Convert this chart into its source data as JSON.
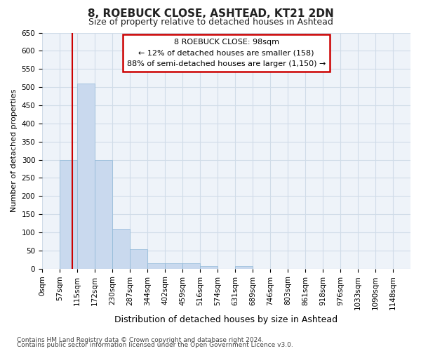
{
  "title1": "8, ROEBUCK CLOSE, ASHTEAD, KT21 2DN",
  "title2": "Size of property relative to detached houses in Ashtead",
  "xlabel": "Distribution of detached houses by size in Ashtead",
  "ylabel": "Number of detached properties",
  "bin_labels": [
    "0sqm",
    "57sqm",
    "115sqm",
    "172sqm",
    "230sqm",
    "287sqm",
    "344sqm",
    "402sqm",
    "459sqm",
    "516sqm",
    "574sqm",
    "631sqm",
    "689sqm",
    "746sqm",
    "803sqm",
    "861sqm",
    "918sqm",
    "976sqm",
    "1033sqm",
    "1090sqm",
    "1148sqm"
  ],
  "bar_heights": [
    0,
    300,
    510,
    300,
    110,
    53,
    15,
    15,
    15,
    8,
    0,
    8,
    0,
    0,
    0,
    0,
    0,
    0,
    0,
    0,
    0
  ],
  "bar_color": "#c9d9ee",
  "bar_edge_color": "#8fb8d8",
  "grid_color": "#d0dce8",
  "background_color": "#ffffff",
  "plot_bg_color": "#eef3f9",
  "red_line_x": 1.72,
  "annotation_title": "8 ROEBUCK CLOSE: 98sqm",
  "annotation_line1": "← 12% of detached houses are smaller (158)",
  "annotation_line2": "88% of semi-detached houses are larger (1,150) →",
  "annotation_box_facecolor": "#ffffff",
  "annotation_box_edgecolor": "#cc0000",
  "red_line_color": "#cc0000",
  "ylim": [
    0,
    650
  ],
  "yticks": [
    0,
    50,
    100,
    150,
    200,
    250,
    300,
    350,
    400,
    450,
    500,
    550,
    600,
    650
  ],
  "footer1": "Contains HM Land Registry data © Crown copyright and database right 2024.",
  "footer2": "Contains public sector information licensed under the Open Government Licence v3.0.",
  "title1_fontsize": 11,
  "title2_fontsize": 9,
  "ylabel_fontsize": 8,
  "xlabel_fontsize": 9,
  "tick_fontsize": 7.5,
  "footer_fontsize": 6.5
}
